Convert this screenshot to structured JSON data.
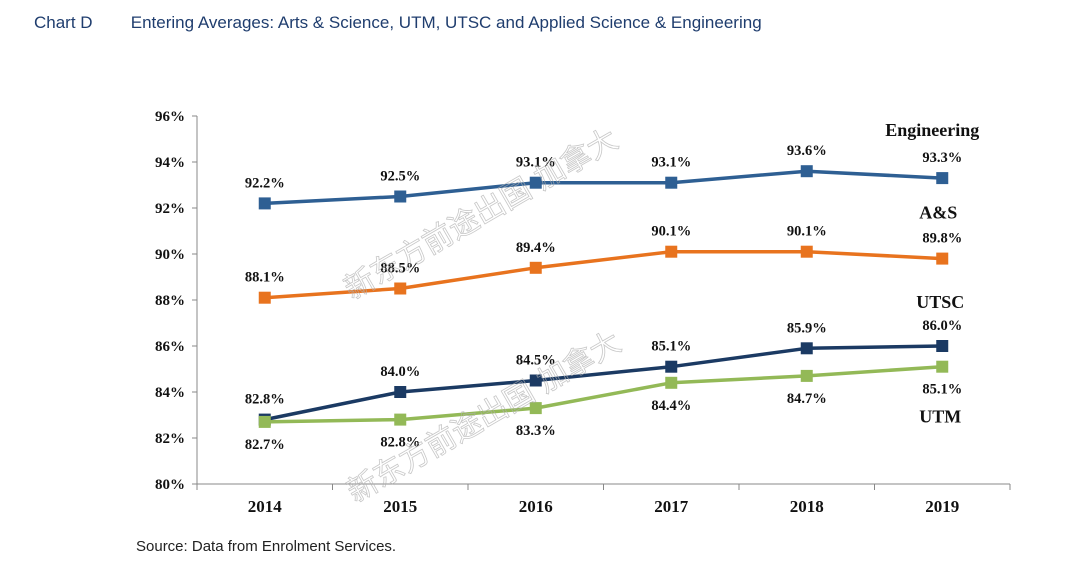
{
  "header": {
    "label": "Chart D",
    "title": "Entering Averages: Arts & Science, UTM, UTSC and Applied Science & Engineering"
  },
  "source": "Source: Data from Enrolment Services.",
  "chart_data": {
    "type": "line",
    "title": "Entering Averages: Arts & Science, UTM, UTSC and Applied Science & Engineering",
    "xlabel": "",
    "ylabel": "",
    "categories": [
      "2014",
      "2015",
      "2016",
      "2017",
      "2018",
      "2019"
    ],
    "ylim": [
      80,
      96
    ],
    "yticks": [
      80,
      82,
      84,
      86,
      88,
      90,
      92,
      94,
      96
    ],
    "ytick_labels": [
      "80%",
      "82%",
      "84%",
      "86%",
      "88%",
      "90%",
      "92%",
      "94%",
      "96%"
    ],
    "grid": false,
    "series": [
      {
        "name": "Engineering",
        "color": "#2e5f93",
        "values": [
          92.2,
          92.5,
          93.1,
          93.1,
          93.6,
          93.3
        ],
        "labels": [
          "92.2%",
          "92.5%",
          "93.1%",
          "93.1%",
          "93.6%",
          "93.3%"
        ],
        "label_pos": "above"
      },
      {
        "name": "A&S",
        "color": "#e8731e",
        "values": [
          88.1,
          88.5,
          89.4,
          90.1,
          90.1,
          89.8
        ],
        "labels": [
          "88.1%",
          "88.5%",
          "89.4%",
          "90.1%",
          "90.1%",
          "89.8%"
        ],
        "label_pos": "above"
      },
      {
        "name": "UTSC",
        "color": "#1b3a63",
        "values": [
          82.8,
          84.0,
          84.5,
          85.1,
          85.9,
          86.0
        ],
        "labels": [
          "82.8%",
          "84.0%",
          "84.5%",
          "85.1%",
          "85.9%",
          "86.0%"
        ],
        "label_pos": "above"
      },
      {
        "name": "UTM",
        "color": "#93b957",
        "values": [
          82.7,
          82.8,
          83.3,
          84.4,
          84.7,
          85.1
        ],
        "labels": [
          "82.7%",
          "82.8%",
          "83.3%",
          "84.4%",
          "84.7%",
          "85.1%"
        ],
        "label_pos": "below"
      }
    ],
    "watermark": "新东方前途出国 加拿大"
  }
}
